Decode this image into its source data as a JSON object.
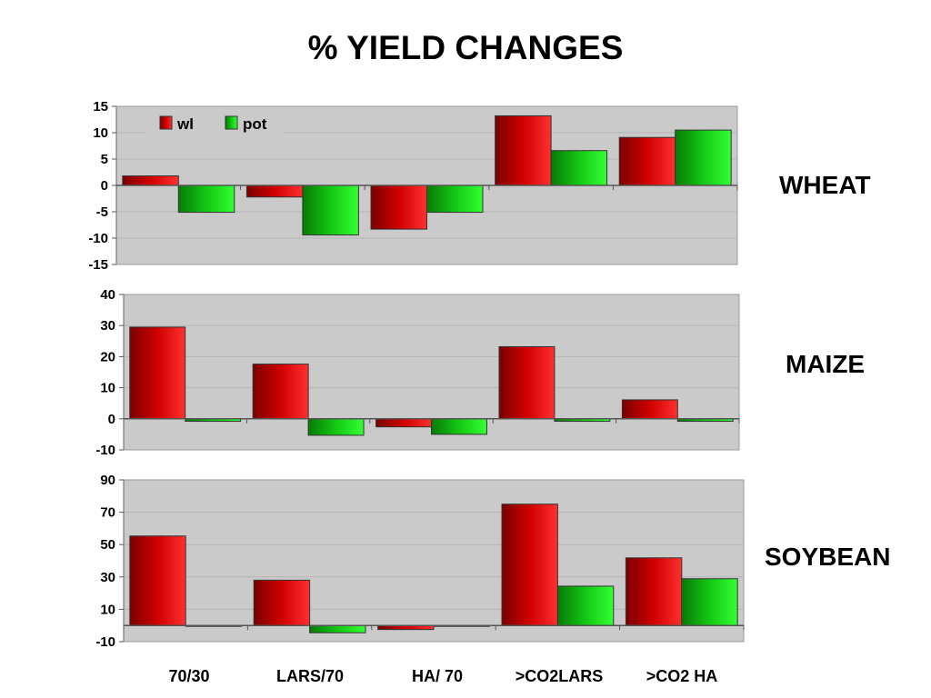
{
  "title": "% YIELD CHANGES",
  "colors": {
    "wl": "#e81010",
    "pot": "#12dc12",
    "plot_bg": "#cacaca",
    "grid": "#b4b4b4"
  },
  "chart_data": [
    {
      "type": "bar",
      "title": "WHEAT",
      "categories": [
        "70/30",
        "LARS/70",
        "HA/ 70",
        ">CO2LARS",
        ">CO2 HA"
      ],
      "series": [
        {
          "name": "wl",
          "values": [
            1.8,
            -2.2,
            -8.3,
            13.2,
            9.1
          ]
        },
        {
          "name": "pot",
          "values": [
            -5.1,
            -9.4,
            -5.1,
            6.6,
            10.5
          ]
        }
      ],
      "ylim": [
        -15,
        15
      ],
      "yticks": [
        15,
        10,
        5,
        0,
        -5,
        -10,
        -15
      ],
      "legend": "top-left",
      "grid": true
    },
    {
      "type": "bar",
      "title": "MAIZE",
      "categories": [
        "70/30",
        "LARS/70",
        "HA/ 70",
        ">CO2LARS",
        ">CO2 HA"
      ],
      "series": [
        {
          "name": "wl",
          "values": [
            29.5,
            17.6,
            -2.6,
            23.2,
            6.1
          ]
        },
        {
          "name": "pot",
          "values": [
            -0.8,
            -5.3,
            -5.0,
            -0.8,
            -0.8
          ]
        }
      ],
      "ylim": [
        -10,
        40
      ],
      "yticks": [
        40,
        30,
        20,
        10,
        0,
        -10
      ],
      "grid": true
    },
    {
      "type": "bar",
      "title": "SOYBEAN",
      "categories": [
        "70/30",
        "LARS/70",
        "HA/ 70",
        ">CO2LARS",
        ">CO2 HA"
      ],
      "series": [
        {
          "name": "wl",
          "values": [
            55.3,
            28.0,
            -2.5,
            75.0,
            41.8
          ]
        },
        {
          "name": "pot",
          "values": [
            0,
            -4.5,
            -0.5,
            24.3,
            28.9
          ]
        }
      ],
      "ylim": [
        -10,
        90
      ],
      "yticks": [
        90,
        70,
        50,
        30,
        10,
        -10
      ],
      "grid": true
    }
  ]
}
